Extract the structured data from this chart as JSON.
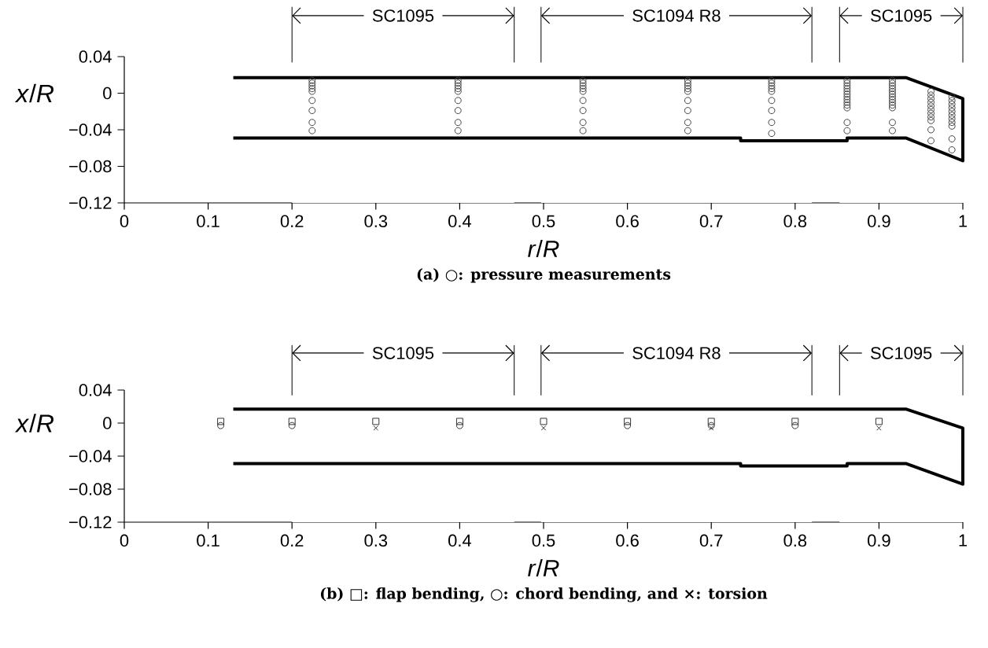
{
  "chart_data": [
    {
      "type": "line",
      "title": "(a) ○: pressure measurements",
      "xlabel": "*r*/*R*",
      "ylabel": "*x*/*R*",
      "xlim": [
        0,
        1
      ],
      "xticks": [
        0,
        0.1,
        0.2,
        0.3,
        0.4,
        0.5,
        0.6,
        0.7,
        0.8,
        0.9,
        1
      ],
      "ylim": [
        -0.12,
        0.04
      ],
      "yticks": [
        {
          "value": -0.12,
          "label": "−0.12"
        },
        {
          "value": -0.08,
          "label": "−0.08"
        },
        {
          "value": -0.04,
          "label": "−0.04"
        },
        0,
        0.04
      ],
      "bands": [
        {
          "axis": "x",
          "from": 0.2,
          "to": 0.465,
          "label": "SC1095",
          "color": "#ffffff"
        },
        {
          "axis": "x",
          "from": 0.497,
          "to": 0.82,
          "label": "SC1094 R8",
          "color": "#ffffff"
        },
        {
          "axis": "x",
          "from": 0.853,
          "to": 1.0,
          "label": "SC1095",
          "color": "#ffffff"
        }
      ],
      "series": [
        {
          "color": "#000000",
          "line_style": "solid",
          "x": [
            0.13,
            0.932,
            1.0,
            1.0,
            0.932,
            0.862,
            0.862,
            0.735,
            0.735,
            0.13
          ],
          "values": [
            0.017,
            0.017,
            -0.006,
            -0.074,
            -0.049,
            -0.049,
            -0.052,
            -0.052,
            -0.049,
            -0.049
          ]
        },
        {
          "type": "scatter",
          "marker": "circle",
          "color": "#444444",
          "x": [
            0.224,
            0.224,
            0.224,
            0.224,
            0.224,
            0.224,
            0.224,
            0.224,
            0.224,
            0.398,
            0.398,
            0.398,
            0.398,
            0.398,
            0.398,
            0.398,
            0.398,
            0.398,
            0.547,
            0.547,
            0.547,
            0.547,
            0.547,
            0.547,
            0.547,
            0.547,
            0.547,
            0.672,
            0.672,
            0.672,
            0.672,
            0.672,
            0.672,
            0.672,
            0.672,
            0.672,
            0.772,
            0.772,
            0.772,
            0.772,
            0.772,
            0.772,
            0.772,
            0.772,
            0.772,
            0.862,
            0.862,
            0.862,
            0.862,
            0.862,
            0.862,
            0.862,
            0.862,
            0.862,
            0.862,
            0.862,
            0.862,
            0.862,
            0.916,
            0.916,
            0.916,
            0.916,
            0.916,
            0.916,
            0.916,
            0.916,
            0.916,
            0.916,
            0.916,
            0.916,
            0.916,
            0.962,
            0.962,
            0.962,
            0.962,
            0.962,
            0.962,
            0.962,
            0.962,
            0.962,
            0.962,
            0.962,
            0.987,
            0.987,
            0.987,
            0.987,
            0.987,
            0.987,
            0.987,
            0.987,
            0.987,
            0.987,
            0.987
          ],
          "values": [
            0.014,
            0.011,
            0.008,
            0.005,
            0.002,
            -0.008,
            -0.019,
            -0.032,
            -0.041,
            0.014,
            0.011,
            0.008,
            0.005,
            0.002,
            -0.008,
            -0.019,
            -0.032,
            -0.041,
            0.014,
            0.011,
            0.008,
            0.005,
            0.002,
            -0.008,
            -0.019,
            -0.032,
            -0.041,
            0.014,
            0.011,
            0.008,
            0.005,
            0.002,
            -0.008,
            -0.019,
            -0.032,
            -0.041,
            0.014,
            0.011,
            0.008,
            0.005,
            0.002,
            -0.008,
            -0.019,
            -0.032,
            -0.044,
            0.014,
            0.011,
            0.008,
            0.005,
            0.002,
            -0.001,
            -0.004,
            -0.007,
            -0.01,
            -0.013,
            -0.016,
            -0.032,
            -0.041,
            0.014,
            0.011,
            0.008,
            0.005,
            0.002,
            -0.001,
            -0.004,
            -0.007,
            -0.01,
            -0.013,
            -0.016,
            -0.032,
            -0.041,
            0.002,
            -0.002,
            -0.006,
            -0.01,
            -0.014,
            -0.018,
            -0.022,
            -0.026,
            -0.03,
            -0.04,
            -0.052,
            -0.004,
            -0.008,
            -0.012,
            -0.016,
            -0.02,
            -0.024,
            -0.028,
            -0.032,
            -0.036,
            -0.05,
            -0.062
          ]
        }
      ]
    },
    {
      "type": "line",
      "title": "(b) □: flap bending, ○: chord bending, and ×: torsion",
      "xlabel": "*r*/*R*",
      "ylabel": "*x*/*R*",
      "xlim": [
        0,
        1
      ],
      "xticks": [
        0,
        0.1,
        0.2,
        0.3,
        0.4,
        0.5,
        0.6,
        0.7,
        0.8,
        0.9,
        1
      ],
      "ylim": [
        -0.12,
        0.04
      ],
      "yticks": [
        {
          "value": -0.12,
          "label": "−0.12"
        },
        {
          "value": -0.08,
          "label": "−0.08"
        },
        {
          "value": -0.04,
          "label": "−0.04"
        },
        0,
        0.04
      ],
      "bands": [
        {
          "axis": "x",
          "from": 0.2,
          "to": 0.465,
          "label": "SC1095",
          "color": "#ffffff"
        },
        {
          "axis": "x",
          "from": 0.497,
          "to": 0.82,
          "label": "SC1094 R8",
          "color": "#ffffff"
        },
        {
          "axis": "x",
          "from": 0.853,
          "to": 1.0,
          "label": "SC1095",
          "color": "#ffffff"
        }
      ],
      "series": [
        {
          "color": "#000000",
          "line_style": "solid",
          "x": [
            0.13,
            0.932,
            1.0,
            1.0,
            0.932,
            0.862,
            0.862,
            0.735,
            0.735,
            0.13
          ],
          "values": [
            0.017,
            0.017,
            -0.006,
            -0.074,
            -0.049,
            -0.049,
            -0.052,
            -0.052,
            -0.049,
            -0.049
          ]
        },
        {
          "type": "scatter",
          "marker": "square",
          "color": "#333333",
          "x": [
            0.115,
            0.2,
            0.3,
            0.4,
            0.5,
            0.6,
            0.7,
            0.8,
            0.9
          ],
          "values": [
            0.002,
            0.002,
            0.002,
            0.002,
            0.002,
            0.002,
            0.002,
            0.002,
            0.002
          ]
        },
        {
          "type": "scatter",
          "marker": "circle",
          "color": "#333333",
          "x": [
            0.115,
            0.2,
            0.4,
            0.6,
            0.7,
            0.8
          ],
          "values": [
            -0.003,
            -0.003,
            -0.003,
            -0.003,
            -0.003,
            -0.003
          ]
        },
        {
          "type": "scatter",
          "marker": "cross",
          "color": "#333333",
          "x": [
            0.3,
            0.5,
            0.7,
            0.9
          ],
          "values": [
            -0.006,
            -0.006,
            -0.006,
            -0.006
          ]
        }
      ]
    }
  ]
}
